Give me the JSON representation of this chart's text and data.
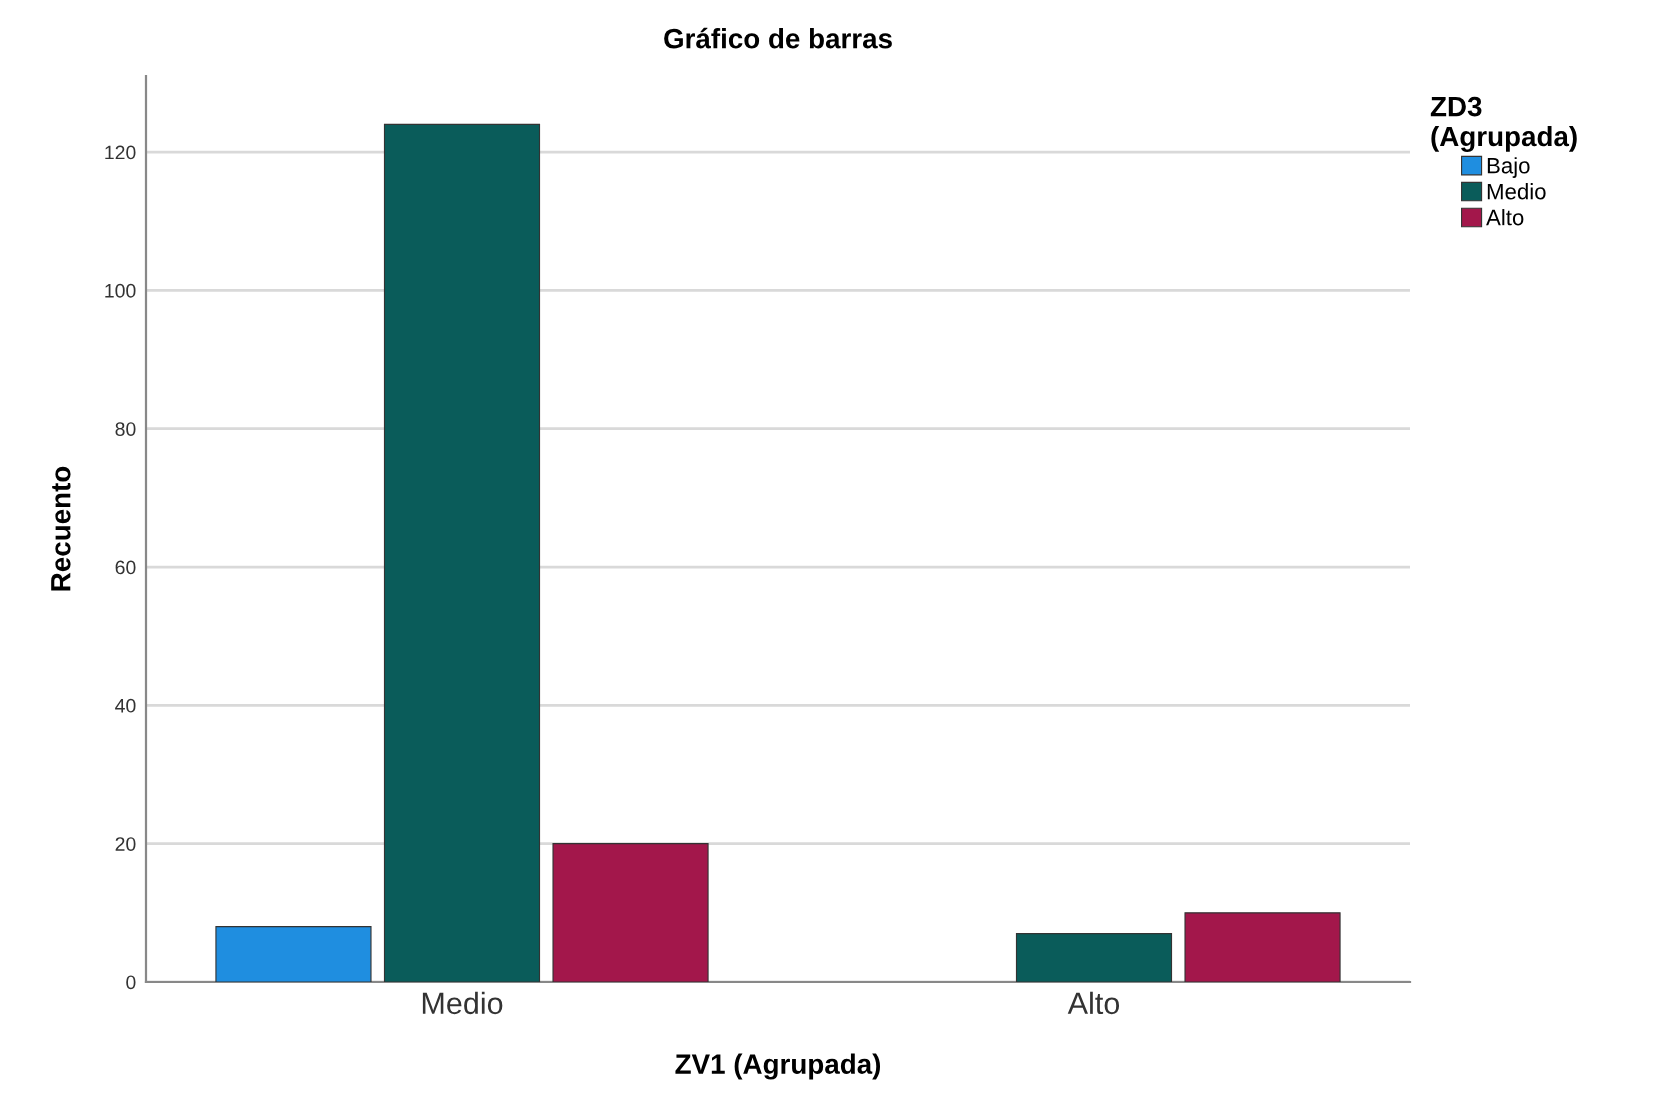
{
  "chart_data": {
    "type": "bar",
    "title": "Gráfico de barras",
    "xlabel": "ZV1 (Agrupada)",
    "ylabel": "Recuento",
    "legend_title": "ZD3\n(Agrupada)",
    "categories": [
      "Medio",
      "Alto"
    ],
    "series": [
      {
        "name": "Bajo",
        "color": "#1f8ee0",
        "values": [
          8,
          null
        ]
      },
      {
        "name": "Medio",
        "color": "#0a5c5a",
        "values": [
          124,
          7
        ]
      },
      {
        "name": "Alto",
        "color": "#a3174b",
        "values": [
          20,
          10
        ]
      }
    ],
    "ylim": [
      0,
      131
    ],
    "yticks": [
      0,
      20,
      40,
      60,
      80,
      100,
      120
    ],
    "grid": "y",
    "legend": "top right"
  }
}
